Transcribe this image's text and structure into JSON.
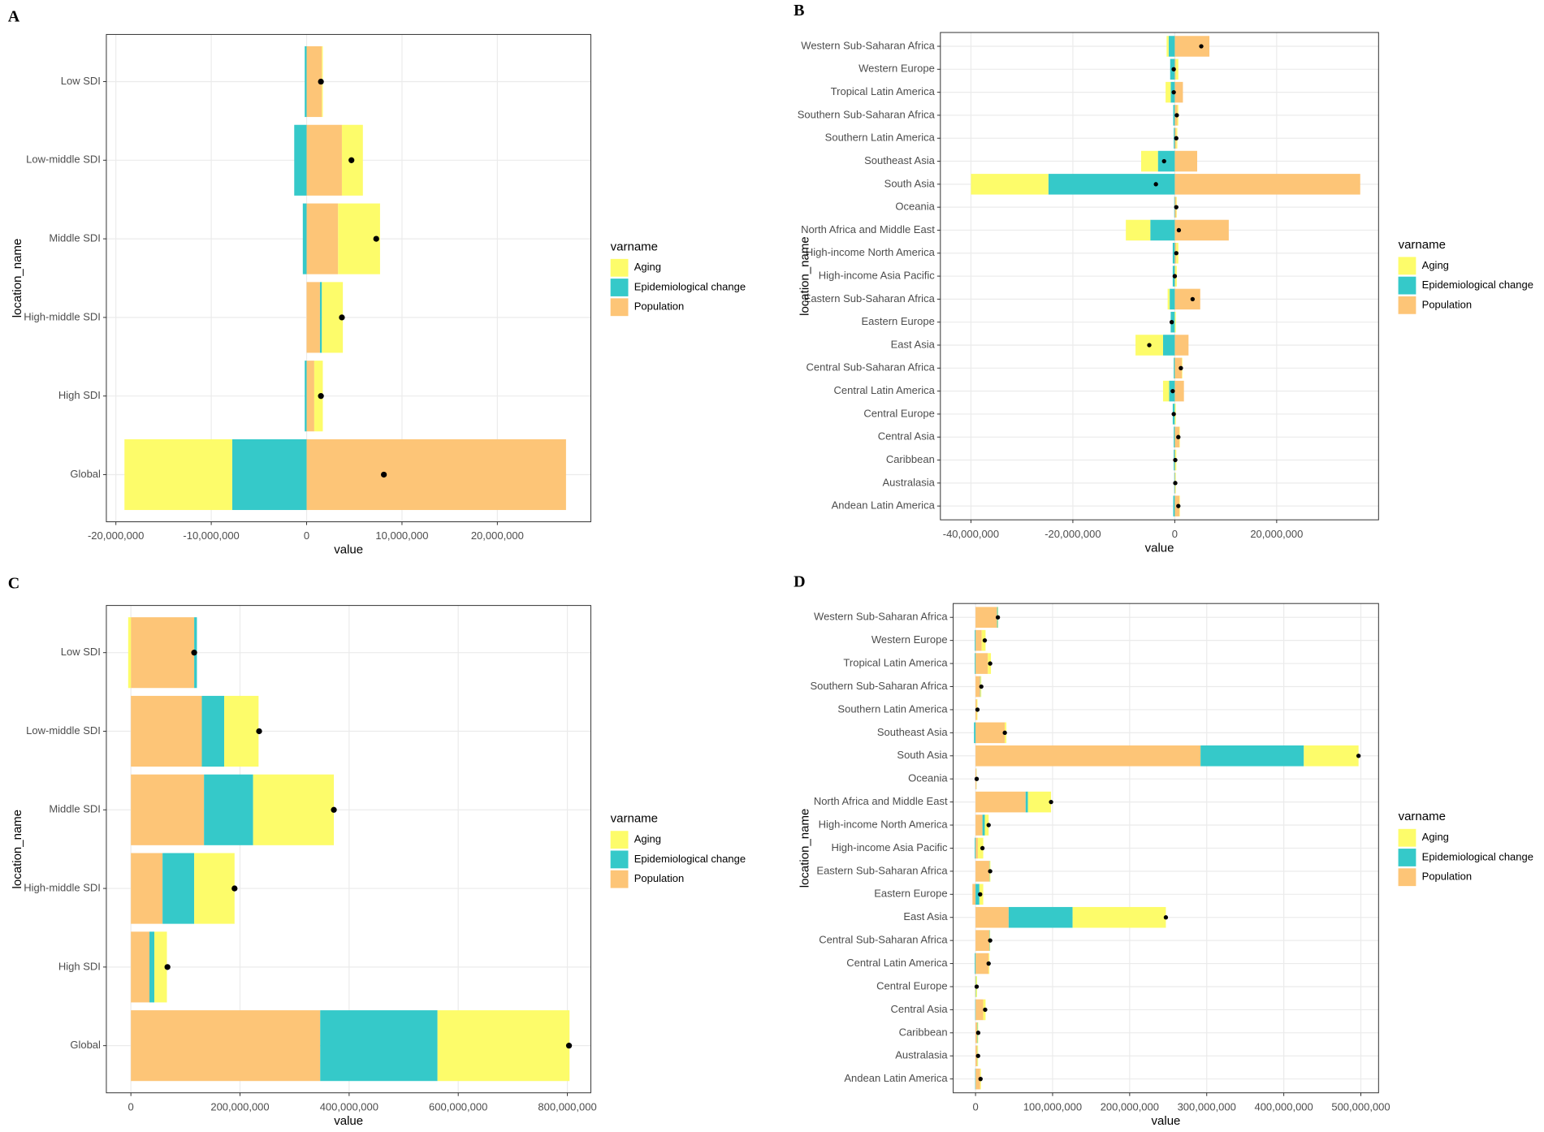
{
  "chart_data": [
    {
      "type": "bar",
      "panel": "A",
      "xlabel": "value",
      "ylabel": "location_name",
      "legend_title": "varname",
      "grid": true,
      "categories": [
        "Low SDI",
        "Low-middle SDI",
        "Middle SDI",
        "High-middle SDI",
        "High SDI",
        "Global"
      ],
      "series": [
        {
          "name": "Aging",
          "color": "#fdfc6a",
          "values": [
            100000,
            2200000,
            4400000,
            2200000,
            900000,
            -11300000
          ]
        },
        {
          "name": "Epidemiological change",
          "color": "#35c9c9",
          "values": [
            -200000,
            -1300000,
            -400000,
            200000,
            -200000,
            -7800000
          ]
        },
        {
          "name": "Population",
          "color": "#fdc577",
          "values": [
            1600000,
            3700000,
            3300000,
            1400000,
            800000,
            27200000
          ]
        }
      ],
      "points": [
        1500000,
        4700000,
        7300000,
        3700000,
        1500000,
        8100000
      ],
      "xlim": [
        -21000000,
        29800000
      ],
      "xticks": [
        {
          "value": -20000000,
          "label": "-20,000,000"
        },
        {
          "value": -10000000,
          "label": "-10,000,000"
        },
        0,
        {
          "value": 10000000,
          "label": "10,000,000"
        },
        {
          "value": 20000000,
          "label": "20,000,000"
        }
      ]
    },
    {
      "type": "bar",
      "panel": "B",
      "xlabel": "value",
      "ylabel": "location_name",
      "legend_title": "varname",
      "grid": true,
      "categories": [
        "Western Sub-Saharan Africa",
        "Western Europe",
        "Tropical Latin America",
        "Southern Sub-Saharan Africa",
        "Southern Latin America",
        "Southeast Asia",
        "South Asia",
        "Oceania",
        "North Africa and Middle East",
        "High-income North America",
        "High-income Asia Pacific",
        "Eastern Sub-Saharan Africa",
        "Eastern Europe",
        "East Asia",
        "Central Sub-Saharan Africa",
        "Central Latin America",
        "Central Europe",
        "Central Asia",
        "Caribbean",
        "Australasia",
        "Andean Latin America"
      ],
      "series": [
        {
          "name": "Aging",
          "color": "#fdfc6a",
          "values": [
            -400000,
            500000,
            -1000000,
            200000,
            200000,
            -3300000,
            -15200000,
            100000,
            -4800000,
            400000,
            300000,
            -400000,
            200000,
            -5400000,
            100000,
            -1200000,
            200000,
            100000,
            200000,
            100000,
            100000
          ]
        },
        {
          "name": "Epidemiological change",
          "color": "#35c9c9",
          "values": [
            -1200000,
            -900000,
            -800000,
            -300000,
            -200000,
            -3300000,
            -24800000,
            -100000,
            -4800000,
            -400000,
            -400000,
            -1000000,
            -800000,
            -2300000,
            -200000,
            -1100000,
            -400000,
            -200000,
            -200000,
            -100000,
            -300000
          ]
        },
        {
          "name": "Population",
          "color": "#fdc577",
          "values": [
            6800000,
            200000,
            1600000,
            500000,
            300000,
            4400000,
            36400000,
            300000,
            10600000,
            300000,
            100000,
            5000000,
            0,
            2700000,
            1400000,
            1800000,
            0,
            900000,
            100000,
            100000,
            900000
          ]
        }
      ],
      "points": [
        5200000,
        -200000,
        -200000,
        400000,
        300000,
        -2100000,
        -3700000,
        300000,
        800000,
        300000,
        0,
        3500000,
        -600000,
        -5000000,
        1200000,
        -400000,
        -200000,
        700000,
        100000,
        100000,
        700000
      ],
      "xlim": [
        -46000000,
        40000000
      ],
      "xticks": [
        {
          "value": -40000000,
          "label": "-40,000,000"
        },
        {
          "value": -20000000,
          "label": "-20,000,000"
        },
        0,
        {
          "value": 20000000,
          "label": "20,000,000"
        }
      ]
    },
    {
      "type": "bar",
      "panel": "C",
      "xlabel": "value",
      "ylabel": "location_name",
      "legend_title": "varname",
      "grid": true,
      "categories": [
        "Low SDI",
        "Low-middle SDI",
        "Middle SDI",
        "High-middle SDI",
        "High SDI",
        "Global"
      ],
      "series": [
        {
          "name": "Aging",
          "color": "#fdfc6a",
          "values": [
            -5000000,
            63000000,
            148000000,
            74000000,
            23000000,
            242000000
          ]
        },
        {
          "name": "Epidemiological change",
          "color": "#35c9c9",
          "values": [
            5000000,
            41000000,
            90000000,
            58000000,
            9000000,
            215000000
          ]
        },
        {
          "name": "Population",
          "color": "#fdc577",
          "values": [
            116000000,
            130000000,
            134000000,
            58000000,
            34000000,
            347000000
          ]
        }
      ],
      "points": [
        116000000,
        235000000,
        372000000,
        190000000,
        67000000,
        803000000
      ],
      "xlim": [
        -45000000,
        843000000
      ],
      "xticks": [
        0,
        {
          "value": 200000000,
          "label": "200,000,000"
        },
        {
          "value": 400000000,
          "label": "400,000,000"
        },
        {
          "value": 600000000,
          "label": "600,000,000"
        },
        {
          "value": 800000000,
          "label": "800,000,000"
        }
      ]
    },
    {
      "type": "bar",
      "panel": "D",
      "xlabel": "value",
      "ylabel": "location_name",
      "legend_title": "varname",
      "grid": true,
      "categories": [
        "Western Sub-Saharan Africa",
        "Western Europe",
        "Tropical Latin America",
        "Southern Sub-Saharan Africa",
        "Southern Latin America",
        "Southeast Asia",
        "South Asia",
        "Oceania",
        "North Africa and Middle East",
        "High-income North America",
        "High-income Asia Pacific",
        "Eastern Sub-Saharan Africa",
        "Eastern Europe",
        "East Asia",
        "Central Sub-Saharan Africa",
        "Central Latin America",
        "Central Europe",
        "Central Asia",
        "Caribbean",
        "Australasia",
        "Andean Latin America"
      ],
      "series": [
        {
          "name": "Aging",
          "color": "#fdfc6a",
          "values": [
            500000,
            5000000,
            4000000,
            1000000,
            1000000,
            2000000,
            71000000,
            300000,
            30000000,
            5000000,
            7000000,
            1000000,
            5000000,
            121000000,
            500000,
            1000000,
            1500000,
            3000000,
            1000000,
            1000000,
            1000000
          ]
        },
        {
          "name": "Epidemiological change",
          "color": "#35c9c9",
          "values": [
            1000000,
            -1000000,
            -1000000,
            500000,
            0,
            -2000000,
            134000000,
            200000,
            3000000,
            3000000,
            -1000000,
            300000,
            5000000,
            83000000,
            500000,
            -1000000,
            500000,
            -500000,
            500000,
            300000,
            -500000
          ]
        },
        {
          "name": "Population",
          "color": "#fdc577",
          "values": [
            28000000,
            8000000,
            16000000,
            6000000,
            1500000,
            38000000,
            292000000,
            1000000,
            65000000,
            9000000,
            3000000,
            18000000,
            -4000000,
            43000000,
            18000000,
            17000000,
            -500000,
            10000000,
            2000000,
            2000000,
            6000000
          ]
        }
      ],
      "points": [
        29000000,
        12000000,
        19000000,
        7500000,
        2500000,
        38000000,
        497000000,
        1500000,
        98000000,
        17000000,
        9000000,
        19000000,
        6000000,
        247000000,
        19000000,
        17000000,
        1500000,
        12500000,
        3500000,
        3300000,
        6500000
      ],
      "xlim": [
        -29000000,
        523000000
      ],
      "xticks": [
        0,
        {
          "value": 100000000,
          "label": "100,000,000"
        },
        {
          "value": 200000000,
          "label": "200,000,000"
        },
        {
          "value": 300000000,
          "label": "300,000,000"
        },
        {
          "value": 400000000,
          "label": "400,000,000"
        },
        {
          "value": 500000000,
          "label": "500,000,000"
        }
      ]
    }
  ]
}
